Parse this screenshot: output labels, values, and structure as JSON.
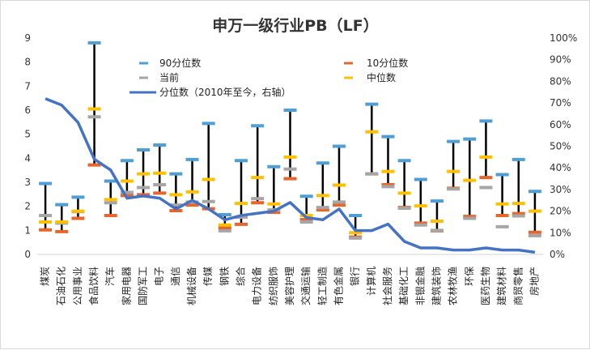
{
  "chart_data": {
    "type": "line",
    "title": "申万一级行业PB（LF）",
    "categories": [
      "煤炭",
      "石油石化",
      "公用事业",
      "食品饮料",
      "汽车",
      "家用电器",
      "国防军工",
      "电子",
      "通信",
      "机械设备",
      "传媒",
      "钢铁",
      "综合",
      "电力设备",
      "纺织服饰",
      "美容护理",
      "交通运输",
      "轻工制造",
      "有色金属",
      "银行",
      "计算机",
      "社会服务",
      "基础化工",
      "非银金融",
      "建筑装饰",
      "农林牧渔",
      "环保",
      "医药生物",
      "建筑材料",
      "商贸零售",
      "房地产"
    ],
    "left_axis": {
      "min": 0,
      "max": 9,
      "ticks": [
        "0",
        "1",
        "2",
        "3",
        "4",
        "5",
        "6",
        "7",
        "8",
        "9"
      ]
    },
    "right_axis": {
      "min": 0,
      "max": 100,
      "ticks": [
        "0%",
        "10%",
        "20%",
        "30%",
        "40%",
        "50%",
        "60%",
        "70%",
        "80%",
        "90%",
        "100%"
      ]
    },
    "series": [
      {
        "name": "90分位数",
        "color": "#4f9fd4",
        "axis": "left",
        "values": [
          2.95,
          2.07,
          2.38,
          8.8,
          3.05,
          3.9,
          4.35,
          4.55,
          3.35,
          3.95,
          5.45,
          1.65,
          3.9,
          5.35,
          3.65,
          6.0,
          2.42,
          3.8,
          4.5,
          1.62,
          6.25,
          4.9,
          3.9,
          3.12,
          2.22,
          4.7,
          4.8,
          5.55,
          3.32,
          3.95,
          2.62
        ]
      },
      {
        "name": "10分位数",
        "color": "#e8662b",
        "axis": "left",
        "values": [
          1.02,
          0.95,
          1.5,
          3.72,
          1.62,
          2.45,
          2.48,
          2.55,
          1.82,
          2.05,
          1.9,
          1.1,
          1.25,
          2.15,
          1.75,
          3.15,
          1.45,
          1.85,
          2.05,
          0.72,
          3.35,
          2.9,
          1.95,
          1.3,
          0.98,
          2.75,
          1.58,
          3.2,
          1.62,
          1.7,
          0.92
        ]
      },
      {
        "name": "当前",
        "color": "#a6a6a6",
        "axis": "left",
        "values": [
          1.62,
          1.3,
          1.78,
          5.72,
          2.15,
          2.58,
          2.78,
          2.9,
          2.05,
          2.18,
          2.2,
          0.98,
          1.55,
          2.32,
          1.85,
          3.55,
          1.35,
          1.95,
          2.18,
          0.68,
          3.35,
          2.82,
          1.92,
          1.22,
          1.0,
          2.72,
          1.5,
          2.78,
          1.15,
          1.6,
          0.78
        ]
      },
      {
        "name": "中位数",
        "color": "#ffc000",
        "axis": "left",
        "values": [
          1.35,
          1.35,
          1.8,
          6.05,
          2.28,
          3.05,
          3.35,
          3.38,
          2.48,
          2.6,
          3.12,
          1.22,
          2.12,
          3.2,
          2.1,
          4.05,
          1.62,
          2.45,
          2.88,
          0.9,
          5.1,
          3.45,
          2.55,
          2.02,
          1.38,
          3.45,
          3.08,
          4.05,
          2.1,
          2.12,
          1.8
        ]
      },
      {
        "name": "分位数（2010年至今，右轴）",
        "color": "#4472c4",
        "axis": "right",
        "values": [
          72,
          69,
          61,
          44,
          39,
          26,
          27,
          26,
          21,
          25,
          21,
          16,
          18,
          19,
          20,
          24,
          17,
          16,
          21,
          11,
          11,
          14,
          6,
          3,
          3,
          2,
          2,
          3,
          2,
          2,
          1
        ]
      }
    ],
    "legend": {
      "p90": "90分位数",
      "p10": "10分位数",
      "current": "当前",
      "median": "中位数",
      "percentile": "分位数（2010年至今，右轴）"
    }
  }
}
